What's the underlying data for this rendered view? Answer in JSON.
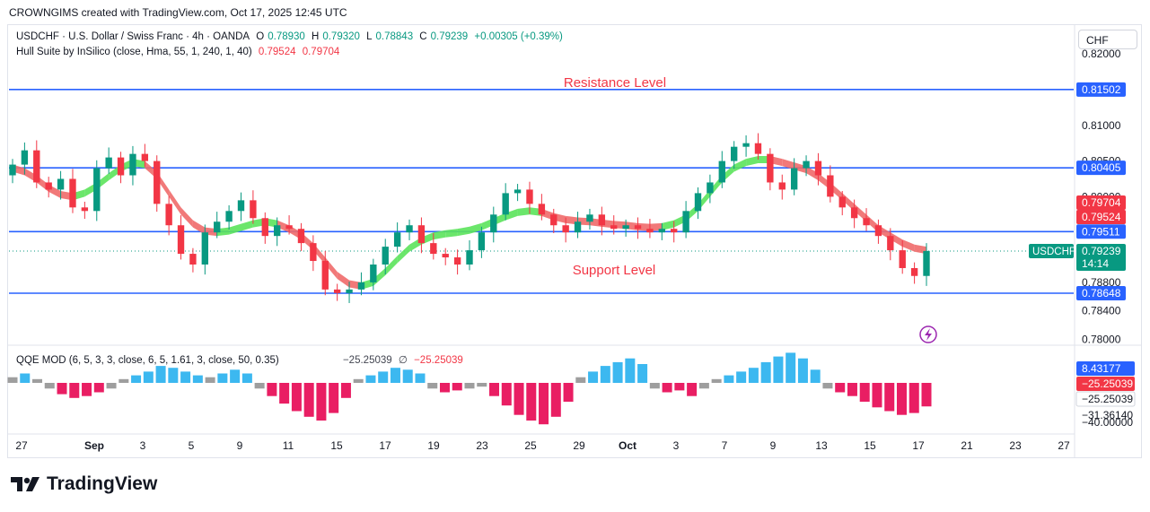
{
  "header": {
    "text": "CROWNGIMS created with TradingView.com, Oct 17, 2025 12:45 UTC"
  },
  "legend": {
    "symbol": "USDCHF · U.S. Dollar / Swiss Franc · 4h · OANDA",
    "open_label": "O",
    "open": "0.78930",
    "high_label": "H",
    "high": "0.79320",
    "low_label": "L",
    "low": "0.78843",
    "close_label": "C",
    "close": "0.79239",
    "change": "+0.00305 (+0.39%)",
    "hull_label": "Hull Suite by InSilico (close, Hma, 55, 1, 240, 1, 40)",
    "hull_v1": "0.79524",
    "hull_v2": "0.79704",
    "qqe_label": "QQE MOD (6, 5, 3, 3, close, 6, 5, 1.61, 3, close, 50, 0.35)",
    "qqe_v1": "−25.25039",
    "qqe_symbol": "∅",
    "qqe_v2": "−25.25039"
  },
  "currency": "CHF",
  "brand": {
    "name": "TradingView"
  },
  "colors": {
    "up": "#089981",
    "down": "#f23645",
    "hull_up": "#5be35b",
    "hull_down": "#f06a6a",
    "level": "#2962ff",
    "qqe_up": "#3cb8f0",
    "qqe_down": "#e91e63",
    "qqe_gray": "#9e9e9e"
  },
  "chart_data": {
    "type": "candlestick",
    "title": "USDCHF · U.S. Dollar / Swiss Franc · 4h · OANDA",
    "annotations": [
      {
        "text": "Resistance Level",
        "price": 0.81502
      },
      {
        "text": "Support Level",
        "price": 0.78648
      }
    ],
    "levels": [
      {
        "name": "resistance",
        "price": 0.81502,
        "label": "0.81502"
      },
      {
        "name": "level-2",
        "price": 0.80405,
        "label": "0.80405"
      },
      {
        "name": "level-3",
        "price": 0.79511,
        "label": "0.79511"
      },
      {
        "name": "support",
        "price": 0.78648,
        "label": "0.78648"
      }
    ],
    "price_axis": {
      "ticks": [
        {
          "v": 0.82,
          "label": "0.82000"
        },
        {
          "v": 0.81,
          "label": "0.81000"
        },
        {
          "v": 0.805,
          "label": "0.80500"
        },
        {
          "v": 0.8,
          "label": "0.80000"
        },
        {
          "v": 0.788,
          "label": "0.78800"
        },
        {
          "v": 0.784,
          "label": "0.78400"
        },
        {
          "v": 0.78,
          "label": "0.78000"
        }
      ],
      "badges": [
        {
          "v": 0.79704,
          "label": "0.79704",
          "color": "#f23645"
        },
        {
          "v": 0.79524,
          "label": "0.79524",
          "color": "#f23645"
        }
      ],
      "current": {
        "v": 0.79239,
        "label": "0.79239",
        "countdown": "14:14",
        "symbol": "USDCHF"
      }
    },
    "time_axis": [
      "27",
      "Sep",
      "3",
      "5",
      "9",
      "11",
      "15",
      "17",
      "19",
      "23",
      "25",
      "29",
      "Oct",
      "3",
      "7",
      "9",
      "13",
      "15",
      "17",
      "21",
      "23",
      "27"
    ],
    "series": [
      {
        "name": "USDCHF",
        "points": [
          [
            0.803,
            0.8045
          ],
          [
            0.8045,
            0.8065
          ],
          [
            0.8065,
            0.802
          ],
          [
            0.802,
            0.801
          ],
          [
            0.801,
            0.8025
          ],
          [
            0.8025,
            0.7985
          ],
          [
            0.7985,
            0.798
          ],
          [
            0.798,
            0.804
          ],
          [
            0.804,
            0.8055
          ],
          [
            0.8055,
            0.803
          ],
          [
            0.803,
            0.806
          ],
          [
            0.806,
            0.805
          ],
          [
            0.805,
            0.799
          ],
          [
            0.799,
            0.796
          ],
          [
            0.796,
            0.792
          ],
          [
            0.792,
            0.7905
          ],
          [
            0.7905,
            0.795
          ],
          [
            0.795,
            0.7965
          ],
          [
            0.7965,
            0.798
          ],
          [
            0.798,
            0.7995
          ],
          [
            0.7995,
            0.797
          ],
          [
            0.797,
            0.7945
          ],
          [
            0.7945,
            0.796
          ],
          [
            0.796,
            0.7955
          ],
          [
            0.7955,
            0.7935
          ],
          [
            0.7935,
            0.791
          ],
          [
            0.791,
            0.787
          ],
          [
            0.787,
            0.7865
          ],
          [
            0.7865,
            0.787
          ],
          [
            0.787,
            0.788
          ],
          [
            0.788,
            0.7905
          ],
          [
            0.7905,
            0.793
          ],
          [
            0.793,
            0.795
          ],
          [
            0.795,
            0.796
          ],
          [
            0.796,
            0.7935
          ],
          [
            0.7935,
            0.792
          ],
          [
            0.792,
            0.7915
          ],
          [
            0.7915,
            0.7905
          ],
          [
            0.7905,
            0.7925
          ],
          [
            0.7925,
            0.795
          ],
          [
            0.795,
            0.7975
          ],
          [
            0.7975,
            0.8005
          ],
          [
            0.8005,
            0.801
          ],
          [
            0.801,
            0.799
          ],
          [
            0.799,
            0.7975
          ],
          [
            0.7975,
            0.796
          ],
          [
            0.796,
            0.795
          ],
          [
            0.795,
            0.7965
          ],
          [
            0.7965,
            0.7975
          ],
          [
            0.7975,
            0.796
          ],
          [
            0.796,
            0.7955
          ],
          [
            0.7955,
            0.796
          ],
          [
            0.796,
            0.7955
          ],
          [
            0.7955,
            0.795
          ],
          [
            0.795,
            0.7955
          ],
          [
            0.7955,
            0.795
          ],
          [
            0.795,
            0.798
          ],
          [
            0.798,
            0.8005
          ],
          [
            0.8005,
            0.802
          ],
          [
            0.802,
            0.805
          ],
          [
            0.805,
            0.807
          ],
          [
            0.807,
            0.8075
          ],
          [
            0.8075,
            0.806
          ],
          [
            0.806,
            0.802
          ],
          [
            0.802,
            0.801
          ],
          [
            0.801,
            0.804
          ],
          [
            0.804,
            0.805
          ],
          [
            0.805,
            0.803
          ],
          [
            0.803,
            0.8
          ],
          [
            0.8,
            0.7985
          ],
          [
            0.7985,
            0.797
          ],
          [
            0.797,
            0.796
          ],
          [
            0.796,
            0.7945
          ],
          [
            0.7945,
            0.7925
          ],
          [
            0.7925,
            0.79
          ],
          [
            0.79,
            0.7889
          ],
          [
            0.7889,
            0.7924
          ]
        ]
      }
    ],
    "hull": [
      0.804,
      0.8035,
      0.8025,
      0.8012,
      0.8003,
      0.8,
      0.8005,
      0.8015,
      0.8028,
      0.804,
      0.8048,
      0.8045,
      0.803,
      0.8005,
      0.798,
      0.7962,
      0.7952,
      0.795,
      0.7952,
      0.7957,
      0.7962,
      0.7965,
      0.7962,
      0.7955,
      0.7945,
      0.793,
      0.791,
      0.789,
      0.7878,
      0.7875,
      0.788,
      0.7895,
      0.7912,
      0.7928,
      0.7938,
      0.7945,
      0.7948,
      0.795,
      0.7953,
      0.7958,
      0.7965,
      0.7972,
      0.7978,
      0.798,
      0.7978,
      0.7972,
      0.7968,
      0.7966,
      0.7965,
      0.7963,
      0.7961,
      0.796,
      0.7958,
      0.7957,
      0.7958,
      0.7962,
      0.797,
      0.7985,
      0.8005,
      0.8025,
      0.804,
      0.8048,
      0.8052,
      0.8052,
      0.8048,
      0.8043,
      0.8038,
      0.8028,
      0.8015,
      0.8,
      0.7985,
      0.797,
      0.7955,
      0.7945,
      0.7935,
      0.7928,
      0.7925
    ],
    "hull_direction": [
      -1,
      -1,
      -1,
      -1,
      -1,
      1,
      1,
      1,
      1,
      1,
      1,
      -1,
      -1,
      -1,
      -1,
      -1,
      -1,
      1,
      1,
      1,
      1,
      1,
      -1,
      -1,
      -1,
      -1,
      -1,
      -1,
      -1,
      1,
      1,
      1,
      1,
      1,
      1,
      1,
      1,
      1,
      1,
      1,
      1,
      1,
      1,
      1,
      -1,
      -1,
      -1,
      -1,
      -1,
      -1,
      -1,
      -1,
      -1,
      -1,
      1,
      1,
      1,
      1,
      1,
      1,
      1,
      1,
      1,
      -1,
      -1,
      -1,
      -1,
      -1,
      -1,
      -1,
      -1,
      -1,
      -1,
      -1,
      -1,
      -1,
      -1
    ],
    "qqe": {
      "axis_labels": [
        {
          "v": 8.43177,
          "label": "8.43177",
          "color": "#2962ff"
        },
        {
          "v": -25.25039,
          "label": "−25.25039",
          "color": "#f23645"
        },
        {
          "v": -25.25039,
          "label": "−25.25039",
          "color": "#434651"
        },
        {
          "v": -31.3614,
          "label": "−31.36140",
          "color": "#ffffff"
        },
        {
          "v": -40.0,
          "label": "−40.00000",
          "color": "#ffffff"
        }
      ],
      "values": [
        6,
        10,
        4,
        -6,
        -12,
        -16,
        -14,
        -10,
        -6,
        4,
        8,
        12,
        18,
        16,
        12,
        8,
        6,
        10,
        14,
        10,
        -6,
        -14,
        -22,
        -30,
        -36,
        -40,
        -32,
        -16,
        4,
        8,
        12,
        16,
        14,
        10,
        -6,
        -10,
        -8,
        -6,
        -4,
        -14,
        -24,
        -34,
        -40,
        -44,
        -36,
        -20,
        6,
        12,
        18,
        22,
        26,
        20,
        -6,
        -10,
        -8,
        -14,
        -6,
        4,
        8,
        12,
        16,
        22,
        28,
        32,
        26,
        14,
        -6,
        -10,
        -14,
        -20,
        -26,
        -30,
        -34,
        -32,
        -25
      ]
    }
  }
}
